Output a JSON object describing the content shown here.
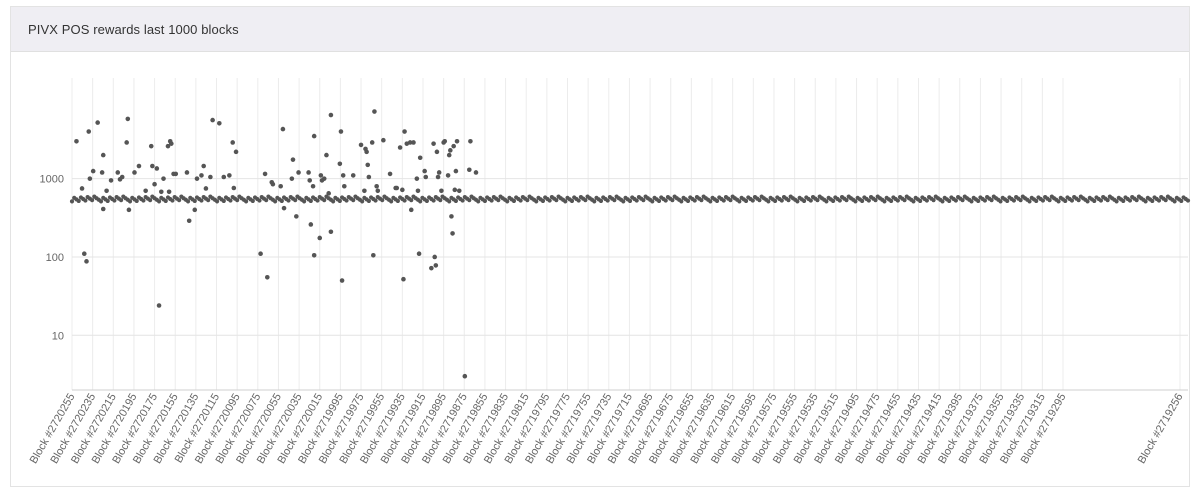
{
  "panel": {
    "title": "PIVX POS rewards last 1000 blocks"
  },
  "chart_data": {
    "type": "scatter",
    "title": "PIVX POS rewards last 1000 blocks",
    "xlabel": "",
    "ylabel": "",
    "yscale": "log",
    "ylim": [
      2,
      9000
    ],
    "y_ticks": [
      10,
      100,
      1000
    ],
    "y_tick_labels": [
      "10",
      "100",
      "1000"
    ],
    "x_tick_labels": [
      "Block #2720255",
      "Block #2720235",
      "Block #2720215",
      "Block #2720195",
      "Block #2720175",
      "Block #2720155",
      "Block #2720135",
      "Block #2720115",
      "Block #2720095",
      "Block #2720075",
      "Block #2720055",
      "Block #2720035",
      "Block #2720015",
      "Block #2719995",
      "Block #2719975",
      "Block #2719955",
      "Block #2719935",
      "Block #2719915",
      "Block #2719895",
      "Block #2719875",
      "Block #2719855",
      "Block #2719835",
      "Block #2719815",
      "Block #2719795",
      "Block #2719775",
      "Block #2719755",
      "Block #2719735",
      "Block #2719715",
      "Block #2719695",
      "Block #2719675",
      "Block #2719655",
      "Block #2719635",
      "Block #2719615",
      "Block #2719595",
      "Block #2719575",
      "Block #2719555",
      "Block #2719535",
      "Block #2719515",
      "Block #2719495",
      "Block #2719475",
      "Block #2719455",
      "Block #2719435",
      "Block #2719415",
      "Block #2719395",
      "Block #2719375",
      "Block #2719355",
      "Block #2719335",
      "Block #2719315",
      "Block #2719295",
      "Block #2719256"
    ],
    "grid": true,
    "marker_color": "#555555",
    "baseline_reward": 550,
    "outliers": [
      {
        "block": 2720252,
        "value": 3000
      },
      {
        "block": 2720247,
        "value": 750
      },
      {
        "block": 2720245,
        "value": 110
      },
      {
        "block": 2720243,
        "value": 88
      },
      {
        "block": 2720241,
        "value": 4000
      },
      {
        "block": 2720240,
        "value": 1000
      },
      {
        "block": 2720237,
        "value": 1250
      },
      {
        "block": 2720233,
        "value": 5200
      },
      {
        "block": 2720229,
        "value": 1200
      },
      {
        "block": 2720228,
        "value": 2000
      },
      {
        "block": 2720228,
        "value": 410
      },
      {
        "block": 2720225,
        "value": 700
      },
      {
        "block": 2720221,
        "value": 950
      },
      {
        "block": 2720215,
        "value": 1200
      },
      {
        "block": 2720213,
        "value": 980
      },
      {
        "block": 2720211,
        "value": 1050
      },
      {
        "block": 2720207,
        "value": 2900
      },
      {
        "block": 2720206,
        "value": 5800
      },
      {
        "block": 2720205,
        "value": 400
      },
      {
        "block": 2720200,
        "value": 1200
      },
      {
        "block": 2720196,
        "value": 1450
      },
      {
        "block": 2720190,
        "value": 700
      },
      {
        "block": 2720185,
        "value": 2600
      },
      {
        "block": 2720184,
        "value": 1450
      },
      {
        "block": 2720182,
        "value": 850
      },
      {
        "block": 2720180,
        "value": 1350
      },
      {
        "block": 2720178,
        "value": 24
      },
      {
        "block": 2720176,
        "value": 680
      },
      {
        "block": 2720174,
        "value": 1000
      },
      {
        "block": 2720170,
        "value": 2600
      },
      {
        "block": 2720169,
        "value": 680
      },
      {
        "block": 2720168,
        "value": 3000
      },
      {
        "block": 2720167,
        "value": 2800
      },
      {
        "block": 2720165,
        "value": 1150
      },
      {
        "block": 2720163,
        "value": 1150
      },
      {
        "block": 2720153,
        "value": 1200
      },
      {
        "block": 2720151,
        "value": 290
      },
      {
        "block": 2720146,
        "value": 400
      },
      {
        "block": 2720144,
        "value": 1000
      },
      {
        "block": 2720140,
        "value": 1100
      },
      {
        "block": 2720138,
        "value": 1450
      },
      {
        "block": 2720136,
        "value": 750
      },
      {
        "block": 2720132,
        "value": 1050
      },
      {
        "block": 2720130,
        "value": 5600
      },
      {
        "block": 2720124,
        "value": 5100
      },
      {
        "block": 2720120,
        "value": 1050
      },
      {
        "block": 2720115,
        "value": 1100
      },
      {
        "block": 2720112,
        "value": 2900
      },
      {
        "block": 2720111,
        "value": 760
      },
      {
        "block": 2720109,
        "value": 2200
      },
      {
        "block": 2720087,
        "value": 110
      },
      {
        "block": 2720083,
        "value": 1150
      },
      {
        "block": 2720081,
        "value": 55
      },
      {
        "block": 2720077,
        "value": 900
      },
      {
        "block": 2720076,
        "value": 850
      },
      {
        "block": 2720069,
        "value": 800
      },
      {
        "block": 2720067,
        "value": 4300
      },
      {
        "block": 2720066,
        "value": 420
      },
      {
        "block": 2720059,
        "value": 1000
      },
      {
        "block": 2720058,
        "value": 1750
      },
      {
        "block": 2720055,
        "value": 330
      },
      {
        "block": 2720053,
        "value": 1200
      },
      {
        "block": 2720044,
        "value": 1200
      },
      {
        "block": 2720043,
        "value": 950
      },
      {
        "block": 2720042,
        "value": 260
      },
      {
        "block": 2720040,
        "value": 800
      },
      {
        "block": 2720039,
        "value": 3500
      },
      {
        "block": 2720039,
        "value": 105
      },
      {
        "block": 2720034,
        "value": 175
      },
      {
        "block": 2720033,
        "value": 1100
      },
      {
        "block": 2720032,
        "value": 950
      },
      {
        "block": 2720030,
        "value": 1000
      },
      {
        "block": 2720028,
        "value": 2000
      },
      {
        "block": 2720026,
        "value": 650
      },
      {
        "block": 2720024,
        "value": 210
      },
      {
        "block": 2720024,
        "value": 6500
      },
      {
        "block": 2720016,
        "value": 1550
      },
      {
        "block": 2720015,
        "value": 4000
      },
      {
        "block": 2720014,
        "value": 50
      },
      {
        "block": 2720013,
        "value": 1100
      },
      {
        "block": 2720012,
        "value": 800
      },
      {
        "block": 2720004,
        "value": 1100
      },
      {
        "block": 2719997,
        "value": 2700
      },
      {
        "block": 2719994,
        "value": 700
      },
      {
        "block": 2719993,
        "value": 2400
      },
      {
        "block": 2719992,
        "value": 2200
      },
      {
        "block": 2719991,
        "value": 1500
      },
      {
        "block": 2719990,
        "value": 1050
      },
      {
        "block": 2719987,
        "value": 2900
      },
      {
        "block": 2719986,
        "value": 105
      },
      {
        "block": 2719985,
        "value": 7200
      },
      {
        "block": 2719983,
        "value": 800
      },
      {
        "block": 2719982,
        "value": 700
      },
      {
        "block": 2719977,
        "value": 3100
      },
      {
        "block": 2719971,
        "value": 1150
      },
      {
        "block": 2719966,
        "value": 760
      },
      {
        "block": 2719965,
        "value": 760
      },
      {
        "block": 2719962,
        "value": 2500
      },
      {
        "block": 2719960,
        "value": 720
      },
      {
        "block": 2719959,
        "value": 52
      },
      {
        "block": 2719958,
        "value": 4000
      },
      {
        "block": 2719956,
        "value": 2800
      },
      {
        "block": 2719953,
        "value": 2900
      },
      {
        "block": 2719952,
        "value": 400
      },
      {
        "block": 2719950,
        "value": 2900
      },
      {
        "block": 2719947,
        "value": 1000
      },
      {
        "block": 2719946,
        "value": 700
      },
      {
        "block": 2719945,
        "value": 110
      },
      {
        "block": 2719944,
        "value": 1850
      },
      {
        "block": 2719940,
        "value": 1250
      },
      {
        "block": 2719939,
        "value": 1050
      },
      {
        "block": 2719934,
        "value": 72
      },
      {
        "block": 2719932,
        "value": 2800
      },
      {
        "block": 2719931,
        "value": 100
      },
      {
        "block": 2719930,
        "value": 78
      },
      {
        "block": 2719929,
        "value": 2200
      },
      {
        "block": 2719928,
        "value": 1050
      },
      {
        "block": 2719927,
        "value": 1200
      },
      {
        "block": 2719925,
        "value": 700
      },
      {
        "block": 2719923,
        "value": 2900
      },
      {
        "block": 2719922,
        "value": 3000
      },
      {
        "block": 2719919,
        "value": 1100
      },
      {
        "block": 2719918,
        "value": 2000
      },
      {
        "block": 2719917,
        "value": 2300
      },
      {
        "block": 2719916,
        "value": 330
      },
      {
        "block": 2719915,
        "value": 200
      },
      {
        "block": 2719914,
        "value": 2600
      },
      {
        "block": 2719913,
        "value": 720
      },
      {
        "block": 2719912,
        "value": 1250
      },
      {
        "block": 2719911,
        "value": 3000
      },
      {
        "block": 2719909,
        "value": 700
      },
      {
        "block": 2719904,
        "value": 3
      },
      {
        "block": 2719900,
        "value": 1300
      },
      {
        "block": 2719899,
        "value": 3000
      },
      {
        "block": 2719894,
        "value": 1200
      }
    ]
  }
}
